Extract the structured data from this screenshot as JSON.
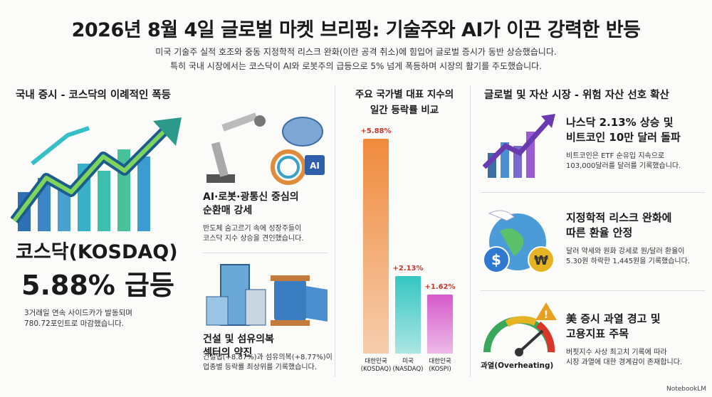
{
  "header": {
    "title": "2026년 8월 4일 글로벌 마켓 브리핑: 기술주와 AI가 이끈 강력한 반등",
    "subtitle": [
      "미국 기술주 실적 호조와 중동 지정학적 리스크 완화(이란 공격 취소)에 힘입어 글로벌 증시가 동반 상승했습니다.",
      "특히 국내 시장에서는 코스닥이 AI와 로봇주의 급등으로 5% 넘게 폭등하며 시장의 활기를 주도했습니다."
    ]
  },
  "domestic": {
    "heading": "국내 증시 - 코스닥의 이례적인 폭등",
    "main": {
      "title": "코스닥(KOSDAQ)",
      "headline": "5.88% 급등",
      "desc": "3거래일 연속 사이드카가 발동되며\n780.72포인트로 마감했습니다."
    },
    "items": [
      {
        "icon_label": "AI",
        "title": "AI·로봇·광통신 중심의\n순환매 강세",
        "desc": "반도체 숨고르기 속에 성장주들이\n코스닥 지수 상승을 견인했습니다."
      },
      {
        "title": "건설 및 섬유의복\n섹터의 약진",
        "desc": "건설업(+8.87%)과 섬유의복(+8.77%)이\n업종별 등락률 최상위를 기록했습니다."
      }
    ]
  },
  "chart_data": {
    "type": "bar",
    "title": "주요 국가별 대표 지수의\n일간 등락률 비교",
    "categories": [
      "대한민국\n(KOSDAQ)",
      "미국\n(NASDAQ)",
      "대한민국\n(KOSPI)"
    ],
    "values": [
      5.88,
      2.13,
      1.62
    ],
    "value_labels": [
      "+5.88%",
      "+2.13%",
      "+1.62%"
    ],
    "colors": [
      "#f08a3c",
      "#35c6c2",
      "#d65acb"
    ]
  },
  "global": {
    "heading": "글로벌 및 자산 시장 - 위험 자산 선호 확산",
    "items": [
      {
        "title": "나스닥 2.13% 상승 및\n비트코인 10만 달러 돌파",
        "desc": "비트코인은 ETF 순유입 지속으로\n103,000달러를 달러를 기록했습니다."
      },
      {
        "title": "지정학적 리스크 완화에\n따른 환율 안정",
        "desc": "달러 약세와 원화 강세로 원/달러 환율이\n5.30원 하락한 1,445원을 기록했습니다.",
        "icons": [
          "$",
          "₩"
        ]
      },
      {
        "title": "美 증시 과열 경고 및\n고용지표 주목",
        "desc": "버핏지수 사상 최고치 기록에 따라\n시장 과열에 대한 경계감이 존재합니다.",
        "gauge_label": "과열(Overheating)"
      }
    ]
  },
  "footer": "NotebookLM"
}
